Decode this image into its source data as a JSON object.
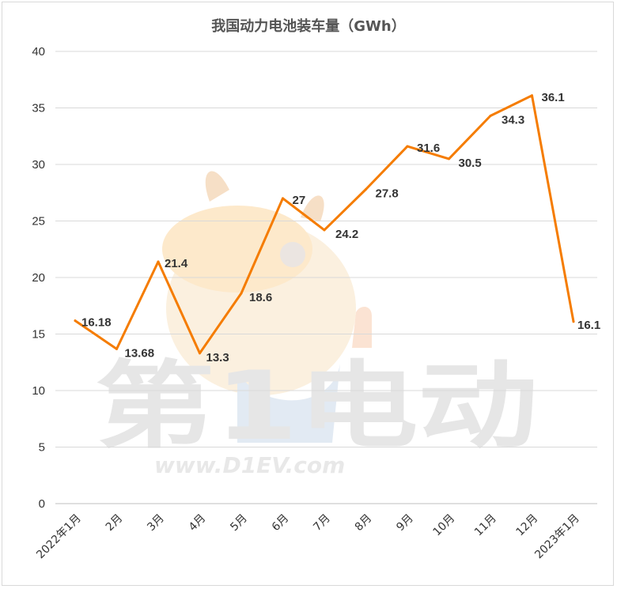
{
  "chart_data": {
    "type": "line",
    "title": "我国动力电池装车量（GWh）",
    "categories": [
      "2022年1月",
      "2月",
      "3月",
      "4月",
      "5月",
      "6月",
      "7月",
      "8月",
      "9月",
      "10月",
      "11月",
      "12月",
      "2023年1月"
    ],
    "series": [
      {
        "values": [
          16.18,
          13.68,
          21.4,
          13.3,
          18.6,
          27,
          24.2,
          27.8,
          31.6,
          30.5,
          34.3,
          36.1,
          16.1
        ]
      }
    ],
    "data_labels": [
      "16.18",
      "13.68",
      "21.4",
      "13.3",
      "18.6",
      "27",
      "24.2",
      "27.8",
      "31.6",
      "30.5",
      "34.3",
      "36.1",
      "16.1"
    ],
    "yticks": [
      "0",
      "5",
      "10",
      "15",
      "20",
      "25",
      "30",
      "35",
      "40"
    ],
    "ylim": [
      0,
      40
    ],
    "grid": true,
    "legend": "none",
    "line_color": "#f57c00"
  },
  "watermark": {
    "characters": "第1电动",
    "url": "www.D1EV.com"
  }
}
